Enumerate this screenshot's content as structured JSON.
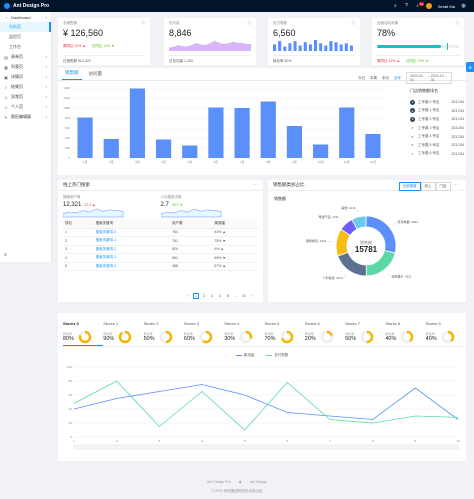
{
  "header": {
    "title": "Ant Design Pro",
    "notice_count": "11",
    "user_name": "Serati Ma"
  },
  "sidebar": {
    "items": [
      {
        "label": "Dashboard",
        "type": "group",
        "icon": "dashboard-icon"
      },
      {
        "label": "分析页",
        "type": "sub",
        "active": true
      },
      {
        "label": "监控页",
        "type": "sub"
      },
      {
        "label": "工作台",
        "type": "sub"
      },
      {
        "label": "表单页",
        "type": "group",
        "icon": "form-icon"
      },
      {
        "label": "列表页",
        "type": "group",
        "icon": "table-icon"
      },
      {
        "label": "详情页",
        "type": "group",
        "icon": "profile-icon"
      },
      {
        "label": "结果页",
        "type": "group",
        "icon": "check-circle-icon"
      },
      {
        "label": "异常页",
        "type": "group",
        "icon": "warning-icon"
      },
      {
        "label": "个人页",
        "type": "group",
        "icon": "user-icon"
      },
      {
        "label": "图形编辑器",
        "type": "group",
        "icon": "highlight-icon"
      }
    ]
  },
  "stats": [
    {
      "title": "总销售额",
      "value": "¥ 126,560",
      "body": [
        "周同比 12% ▲",
        "日同比 11% ▼"
      ],
      "footer": "日销售额 ¥12,423"
    },
    {
      "title": "访问量",
      "value": "8,846",
      "footer": "日访问量 1,234"
    },
    {
      "title": "支付笔数",
      "value": "6,560",
      "footer": "转化率 60%"
    },
    {
      "title": "运营活动效果",
      "value": "78%",
      "progress": 0.78,
      "body": [
        "周同比 12% ▲",
        "日同比 11% ▼"
      ]
    }
  ],
  "sales": {
    "tabs": [
      "销售额",
      "访问量"
    ],
    "ranges": [
      "今日",
      "本周",
      "本月",
      "全年"
    ],
    "active_range": "全年",
    "date_start": "2023-01-01",
    "date_end": "2023-12-31",
    "ranking_title": "门店销售额排名",
    "ranking": [
      {
        "rank": "1",
        "name": "工专路 0 号店",
        "value": "323,234"
      },
      {
        "rank": "2",
        "name": "工专路 1 号店",
        "value": "323,234"
      },
      {
        "rank": "3",
        "name": "工专路 2 号店",
        "value": "323,234"
      },
      {
        "rank": "4",
        "name": "工专路 3 号店",
        "value": "323,234"
      },
      {
        "rank": "5",
        "name": "工专路 4 号店",
        "value": "323,234"
      },
      {
        "rank": "6",
        "name": "工专路 5 号店",
        "value": "323,234"
      },
      {
        "rank": "7",
        "name": "工专路 6 号店",
        "value": "323,234"
      }
    ]
  },
  "search": {
    "title": "线上热门搜索",
    "users_label": "搜索用户数",
    "users_value": "12,321",
    "users_change": "17.1 ▲",
    "avg_label": "人均搜索次数",
    "avg_value": "2.7",
    "avg_change": "26.2 ▼",
    "columns": [
      "排名",
      "搜索关键词",
      "用户数",
      "周涨幅"
    ],
    "rows": [
      [
        "1",
        "搜索关键词-0",
        "764",
        "43% ▲"
      ],
      [
        "2",
        "搜索关键词-1",
        "761",
        "75% ▼"
      ],
      [
        "3",
        "搜索关键词-2",
        "829",
        "9% ▲"
      ],
      [
        "4",
        "搜索关键词-3",
        "661",
        "66% ▼"
      ],
      [
        "5",
        "搜索关键词-4",
        "488",
        "57% ▲"
      ]
    ],
    "pages": [
      "1",
      "2",
      "3",
      "4",
      "5",
      "…",
      "10"
    ]
  },
  "pie": {
    "title": "销售额类别占比",
    "seg": [
      "全部渠道",
      "线上",
      "门店"
    ],
    "subtitle": "销售额",
    "center_label": "销售额",
    "center_value": "15781"
  },
  "offline": {
    "stores": [
      {
        "name": "Stores 0",
        "meta": "转化率",
        "pct": "80%",
        "rate": 0.8
      },
      {
        "name": "Stores 1",
        "meta": "转化率",
        "pct": "90%",
        "rate": 0.9
      },
      {
        "name": "Stores 2",
        "meta": "转化率",
        "pct": "50%",
        "rate": 0.5
      },
      {
        "name": "Stores 3",
        "meta": "转化率",
        "pct": "60%",
        "rate": 0.6
      },
      {
        "name": "Stores 4",
        "meta": "转化率",
        "pct": "30%",
        "rate": 0.3
      },
      {
        "name": "Stores 5",
        "meta": "转化率",
        "pct": "70%",
        "rate": 0.7
      },
      {
        "name": "Stores 6",
        "meta": "转化率",
        "pct": "20%",
        "rate": 0.2
      },
      {
        "name": "Stores 7",
        "meta": "转化率",
        "pct": "50%",
        "rate": 0.5
      },
      {
        "name": "Stores 8",
        "meta": "转化率",
        "pct": "40%",
        "rate": 0.4
      },
      {
        "name": "Stores 9",
        "meta": "转化率",
        "pct": "40%",
        "rate": 0.4
      }
    ]
  },
  "footer": {
    "links": [
      "Ant Design Pro",
      "Ant Design"
    ],
    "copyright": "© 2023 蚂蚁集团体验技术部出品"
  },
  "colors": {
    "primary": "#1890ff",
    "bar": "#5b8ff9",
    "teal": "#13c2c2",
    "ring": "#f5b400",
    "line1": "#5b8ff9",
    "line2": "#5ad8a6"
  },
  "chart_data": [
    {
      "type": "bar",
      "categories": [
        "1月",
        "2月",
        "3月",
        "4月",
        "5月",
        "6月",
        "7月",
        "8月",
        "9月",
        "10月",
        "11月",
        "12月"
      ],
      "values": [
        810,
        380,
        1390,
        370,
        250,
        1010,
        1000,
        1130,
        640,
        270,
        1010,
        480
      ],
      "ylim": [
        0,
        1400
      ],
      "yticks": [
        0,
        200,
        400,
        600,
        800,
        1000,
        1200,
        1400
      ]
    },
    {
      "type": "pie",
      "donut": true,
      "labels": [
        "家用电器",
        "食用酒水",
        "个护健康",
        "服饰箱包",
        "母婴产品",
        "其他"
      ],
      "values": [
        4544,
        3321,
        3113,
        2341,
        1231,
        1231
      ],
      "colors": [
        "#5b8ff9",
        "#5ad8a6",
        "#5d7092",
        "#f6bd16",
        "#6f5ef9",
        "#6dc8ec"
      ]
    },
    {
      "type": "area",
      "sparkline": true,
      "values": [
        3,
        5,
        4,
        7,
        5,
        9,
        6,
        8,
        7,
        6
      ]
    },
    {
      "type": "bar",
      "sparkline": true,
      "values": [
        6,
        9,
        4,
        7,
        9,
        5,
        8,
        6,
        10,
        7,
        5,
        9,
        8,
        6,
        7,
        5
      ]
    },
    {
      "type": "line",
      "legend": [
        "客流量",
        "支付笔数"
      ],
      "x": [
        "1",
        "2",
        "3",
        "4",
        "5",
        "6",
        "7",
        "8",
        "9",
        "10"
      ],
      "series": [
        {
          "name": "客流量",
          "values": [
            40,
            55,
            65,
            75,
            60,
            35,
            30,
            25,
            70,
            25
          ]
        },
        {
          "name": "支付笔数",
          "values": [
            48,
            80,
            15,
            65,
            10,
            78,
            25,
            20,
            30,
            28
          ]
        }
      ],
      "ylim": [
        0,
        100
      ],
      "yticks": [
        0,
        20,
        40,
        60,
        80,
        100
      ]
    }
  ]
}
